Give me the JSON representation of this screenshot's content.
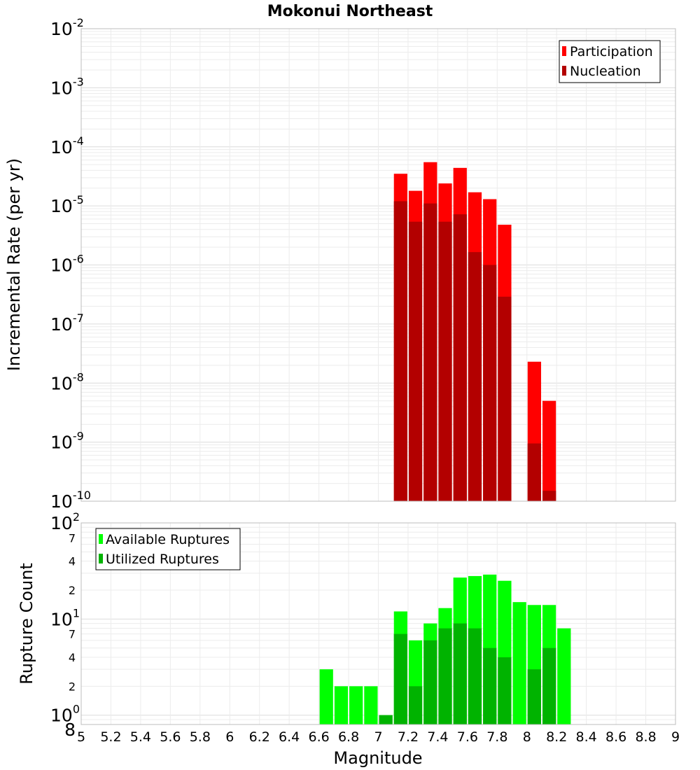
{
  "chart_data": [
    {
      "type": "bar",
      "title": "Mokonui Northeast",
      "ylabel": "Incremental Rate (per yr)",
      "xlabel": "",
      "xlim": [
        5,
        9
      ],
      "ylim": [
        1e-10,
        0.01
      ],
      "yscale": "log",
      "y_tick_exponents": [
        "-2",
        "-3",
        "-4",
        "-5",
        "-6",
        "-7",
        "-8",
        "-9",
        "-10"
      ],
      "y_tick_base": "10",
      "grid": true,
      "legend": {
        "placement": "top-right",
        "entries": [
          {
            "name": "Participation",
            "color": "#ff0000"
          },
          {
            "name": "Nucleation",
            "color": "#b30000"
          }
        ]
      },
      "series": [
        {
          "name": "Participation",
          "color": "#ff0000",
          "points": [
            [
              7.1,
              3.5e-05
            ],
            [
              7.2,
              1.8e-05
            ],
            [
              7.3,
              5.5e-05
            ],
            [
              7.4,
              2.4e-05
            ],
            [
              7.5,
              4.4e-05
            ],
            [
              7.6,
              1.7e-05
            ],
            [
              7.7,
              1.3e-05
            ],
            [
              7.8,
              4.8e-06
            ],
            [
              8.0,
              2.3e-08
            ],
            [
              8.1,
              5e-09
            ]
          ]
        },
        {
          "name": "Nucleation",
          "color": "#b30000",
          "points": [
            [
              7.1,
              1.2e-05
            ],
            [
              7.2,
              5.4e-06
            ],
            [
              7.3,
              1.1e-05
            ],
            [
              7.4,
              5.4e-06
            ],
            [
              7.5,
              7.2e-06
            ],
            [
              7.6,
              1.65e-06
            ],
            [
              7.7,
              1e-06
            ],
            [
              7.8,
              2.9e-07
            ],
            [
              8.0,
              9.5e-10
            ],
            [
              8.1,
              1.5e-10
            ]
          ]
        }
      ]
    },
    {
      "type": "bar",
      "title": "",
      "ylabel": "Rupture Count",
      "xlabel": "Magnitude",
      "xlim": [
        5,
        9
      ],
      "ylim": [
        0.8,
        100
      ],
      "yscale": "log",
      "x_ticks": [
        "5",
        "5.2",
        "5.4",
        "5.6",
        "5.8",
        "6",
        "6.2",
        "6.4",
        "6.6",
        "6.8",
        "7",
        "7.2",
        "7.4",
        "7.6",
        "7.8",
        "8",
        "8.2",
        "8.4",
        "8.6",
        "8.8",
        "9"
      ],
      "y_major_ticks": [
        {
          "value": 100,
          "base": "10",
          "exp": "2"
        },
        {
          "value": 10,
          "base": "10",
          "exp": "1"
        },
        {
          "value": 1,
          "base": "10",
          "exp": "0"
        }
      ],
      "y_minor_ticks": [
        {
          "value": 70,
          "label": "7"
        },
        {
          "value": 40,
          "label": "4"
        },
        {
          "value": 20,
          "label": "2"
        },
        {
          "value": 7,
          "label": "7"
        },
        {
          "value": 4,
          "label": "4"
        },
        {
          "value": 2,
          "label": "2"
        },
        {
          "value": 0.8,
          "label": "8"
        }
      ],
      "grid": true,
      "legend": {
        "placement": "top-left",
        "entries": [
          {
            "name": "Available Ruptures",
            "color": "#00ff00"
          },
          {
            "name": "Utilized Ruptures",
            "color": "#00b300"
          }
        ]
      },
      "series": [
        {
          "name": "Available Ruptures",
          "color": "#00ff00",
          "points": [
            [
              6.6,
              3
            ],
            [
              6.7,
              2
            ],
            [
              6.8,
              2
            ],
            [
              6.9,
              2
            ],
            [
              7.0,
              1
            ],
            [
              7.1,
              12
            ],
            [
              7.2,
              6
            ],
            [
              7.3,
              9
            ],
            [
              7.4,
              13
            ],
            [
              7.5,
              27
            ],
            [
              7.6,
              28
            ],
            [
              7.7,
              29
            ],
            [
              7.8,
              25
            ],
            [
              7.9,
              15
            ],
            [
              8.0,
              14
            ],
            [
              8.1,
              14
            ],
            [
              8.2,
              8
            ]
          ]
        },
        {
          "name": "Utilized Ruptures",
          "color": "#00b300",
          "points": [
            [
              7.0,
              1
            ],
            [
              7.1,
              7
            ],
            [
              7.2,
              2
            ],
            [
              7.3,
              6
            ],
            [
              7.4,
              8
            ],
            [
              7.5,
              9
            ],
            [
              7.6,
              8
            ],
            [
              7.7,
              5
            ],
            [
              7.8,
              4
            ],
            [
              8.0,
              3
            ],
            [
              8.1,
              5
            ]
          ]
        }
      ]
    }
  ]
}
